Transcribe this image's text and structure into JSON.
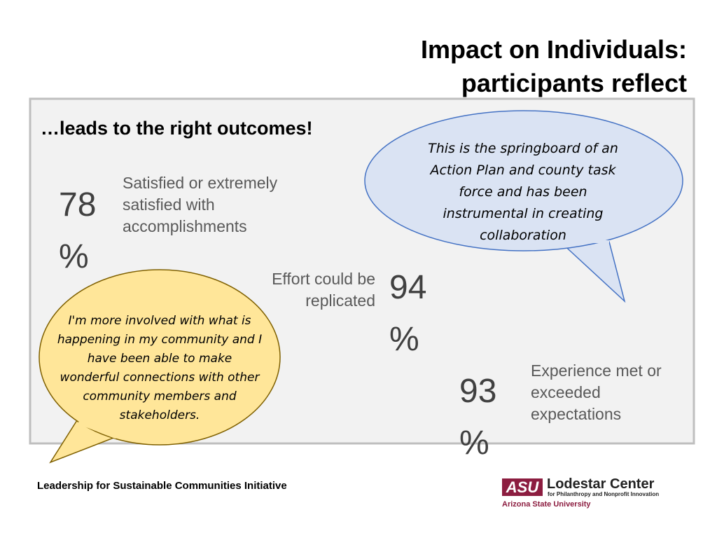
{
  "header": {
    "title_lines": [
      "Impact on Individuals:",
      "participants reflect"
    ]
  },
  "panel": {
    "heading": "…leads to the right outcomes!",
    "stats": [
      {
        "stat": "78 %",
        "text": "Satisfied or extremely satisfied with accomplishments"
      },
      {
        "stat": "94 %",
        "text": "Effort could be replicated"
      },
      {
        "stat": "93 %",
        "text": "Experience met or exceeded expectations"
      }
    ],
    "quotes": [
      "This is the springboard of an Action Plan and county task force and has been instrumental in creating collaboration",
      "I'm more involved with what is happening in my community and I have been able to make wonderful connections with other community members and stakeholders."
    ]
  },
  "footer": {
    "text": "Leadership for Sustainable Communities Initiative",
    "logo": {
      "mark": "ASU",
      "name": "Lodestar Center",
      "tagline": "for Philanthropy and Nonprofit Innovation",
      "university": "Arizona State University"
    }
  }
}
